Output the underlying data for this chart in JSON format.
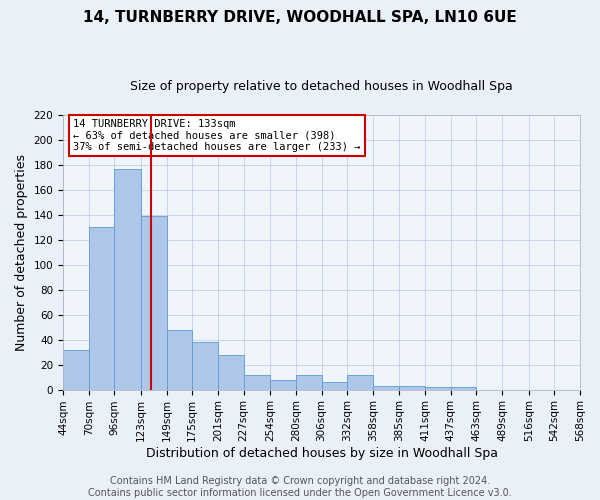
{
  "title": "14, TURNBERRY DRIVE, WOODHALL SPA, LN10 6UE",
  "subtitle": "Size of property relative to detached houses in Woodhall Spa",
  "xlabel": "Distribution of detached houses by size in Woodhall Spa",
  "ylabel": "Number of detached properties",
  "bar_values": [
    32,
    130,
    177,
    139,
    48,
    38,
    28,
    12,
    8,
    12,
    6,
    12,
    3,
    3,
    2,
    2,
    0,
    0,
    0,
    0
  ],
  "bin_labels": [
    "44sqm",
    "70sqm",
    "96sqm",
    "123sqm",
    "149sqm",
    "175sqm",
    "201sqm",
    "227sqm",
    "254sqm",
    "280sqm",
    "306sqm",
    "332sqm",
    "358sqm",
    "385sqm",
    "411sqm",
    "437sqm",
    "463sqm",
    "489sqm",
    "516sqm",
    "542sqm",
    "568sqm"
  ],
  "bin_edges": [
    44,
    70,
    96,
    123,
    149,
    175,
    201,
    227,
    254,
    280,
    306,
    332,
    358,
    385,
    411,
    437,
    463,
    489,
    516,
    542,
    568
  ],
  "bar_color": "#aec6e8",
  "bar_edge_color": "#5b9bd5",
  "vline_x": 133,
  "vline_color": "#cc0000",
  "ylim": [
    0,
    220
  ],
  "yticks": [
    0,
    20,
    40,
    60,
    80,
    100,
    120,
    140,
    160,
    180,
    200,
    220
  ],
  "annotation_title": "14 TURNBERRY DRIVE: 133sqm",
  "annotation_line1": "← 63% of detached houses are smaller (398)",
  "annotation_line2": "37% of semi-detached houses are larger (233) →",
  "annotation_box_color": "#ffffff",
  "annotation_box_edge_color": "#cc0000",
  "footer1": "Contains HM Land Registry data © Crown copyright and database right 2024.",
  "footer2": "Contains public sector information licensed under the Open Government Licence v3.0.",
  "bg_color": "#eaf0f8",
  "plot_bg_color": "#f0f5fc",
  "title_fontsize": 11,
  "subtitle_fontsize": 9,
  "axis_label_fontsize": 9,
  "tick_fontsize": 7.5,
  "footer_fontsize": 7
}
